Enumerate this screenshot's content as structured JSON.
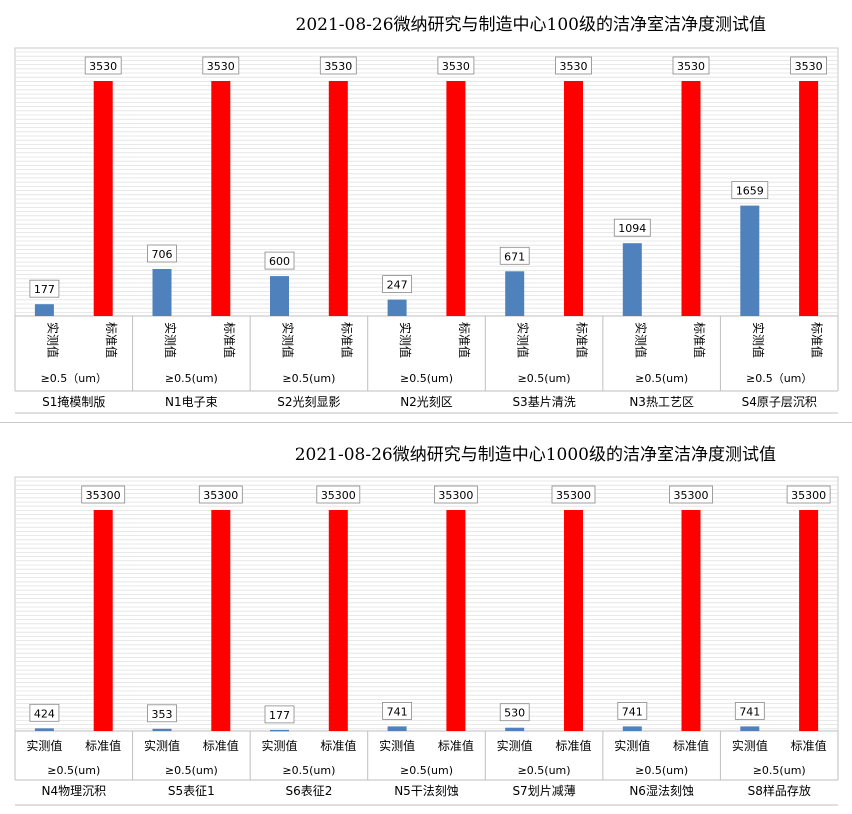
{
  "chart_data": [
    {
      "type": "bar",
      "title": "2021-08-26微纳研究与制造中心100级的洁净室洁净度测试值",
      "series_names": [
        "实测值",
        "标准值"
      ],
      "categories": [
        {
          "group": "S1掩模制版",
          "particle": "≥0.5（um）"
        },
        {
          "group": "N1电子束",
          "particle": "≥0.5(um)"
        },
        {
          "group": "S2光刻显影",
          "particle": "≥0.5(um)"
        },
        {
          "group": "N2光刻区",
          "particle": "≥0.5(um)"
        },
        {
          "group": "S3基片清洗",
          "particle": "≥0.5(um)"
        },
        {
          "group": "N3热工艺区",
          "particle": "≥0.5(um)"
        },
        {
          "group": "S4原子层沉积",
          "particle": "≥0.5（um）"
        }
      ],
      "series": [
        {
          "name": "实测值",
          "values": [
            177,
            706,
            600,
            247,
            671,
            1094,
            1659
          ],
          "color": "#4f81bd"
        },
        {
          "name": "标准值",
          "values": [
            3530,
            3530,
            3530,
            3530,
            3530,
            3530,
            3530
          ],
          "color": "#ff0000"
        }
      ],
      "ylim": [
        0,
        3530
      ],
      "grid": true,
      "series_label_vertical": true
    },
    {
      "type": "bar",
      "title": "2021-08-26微纳研究与制造中心1000级的洁净室洁净度测试值",
      "series_names": [
        "实测值",
        "标准值"
      ],
      "categories": [
        {
          "group": "N4物理沉积",
          "particle": "≥0.5(um)"
        },
        {
          "group": "S5表征1",
          "particle": "≥0.5(um)"
        },
        {
          "group": "S6表征2",
          "particle": "≥0.5(um)"
        },
        {
          "group": "N5干法刻蚀",
          "particle": "≥0.5(um)"
        },
        {
          "group": "S7划片减薄",
          "particle": "≥0.5(um)"
        },
        {
          "group": "N6湿法刻蚀",
          "particle": "≥0.5(um)"
        },
        {
          "group": "S8样品存放",
          "particle": "≥0.5(um)"
        }
      ],
      "series": [
        {
          "name": "实测值",
          "values": [
            424,
            353,
            177,
            741,
            530,
            741,
            741
          ],
          "color": "#4f81bd"
        },
        {
          "name": "标准值",
          "values": [
            35300,
            35300,
            35300,
            35300,
            35300,
            35300,
            35300
          ],
          "color": "#ff0000"
        }
      ],
      "ylim": [
        0,
        35300
      ],
      "grid": true,
      "series_label_vertical": false
    }
  ]
}
